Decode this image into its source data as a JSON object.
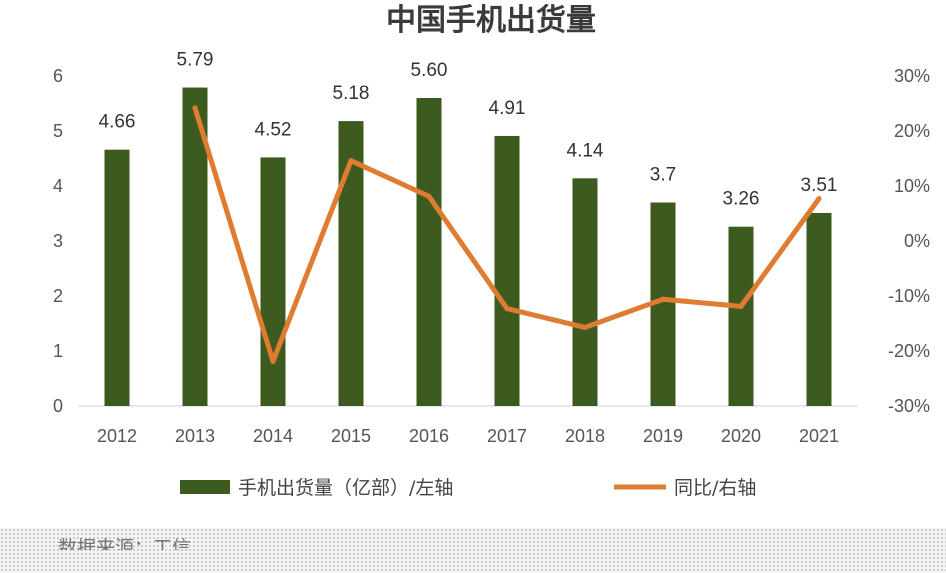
{
  "chart_data": {
    "type": "bar",
    "title": "中国手机出货量",
    "categories": [
      "2012",
      "2013",
      "2014",
      "2015",
      "2016",
      "2017",
      "2018",
      "2019",
      "2020",
      "2021"
    ],
    "series": [
      {
        "name": "手机出货量（亿部）/左轴",
        "type": "bar",
        "axis": "left",
        "color": "#3d5b1f",
        "values": [
          4.66,
          5.79,
          4.52,
          5.18,
          5.6,
          4.91,
          4.14,
          3.7,
          3.26,
          3.51
        ],
        "labels": [
          "4.66",
          "5.79",
          "4.52",
          "5.18",
          "5.60",
          "4.91",
          "4.14",
          "3.7",
          "3.26",
          "3.51"
        ]
      },
      {
        "name": "同比/右轴",
        "type": "line",
        "axis": "right",
        "color": "#e07b32",
        "values": [
          null,
          24.2,
          -21.9,
          14.6,
          8.1,
          -12.3,
          -15.7,
          -10.6,
          -11.9,
          7.7
        ]
      }
    ],
    "y_left": {
      "min": 0,
      "max": 6,
      "ticks": [
        "0",
        "1",
        "2",
        "3",
        "4",
        "5",
        "6"
      ]
    },
    "y_right": {
      "min": -30,
      "max": 30,
      "ticks": [
        "-30%",
        "-20%",
        "-10%",
        "0%",
        "10%",
        "20%",
        "30%"
      ]
    },
    "grid": false,
    "legend_position": "bottom"
  },
  "source_note": "数据来源：工信"
}
